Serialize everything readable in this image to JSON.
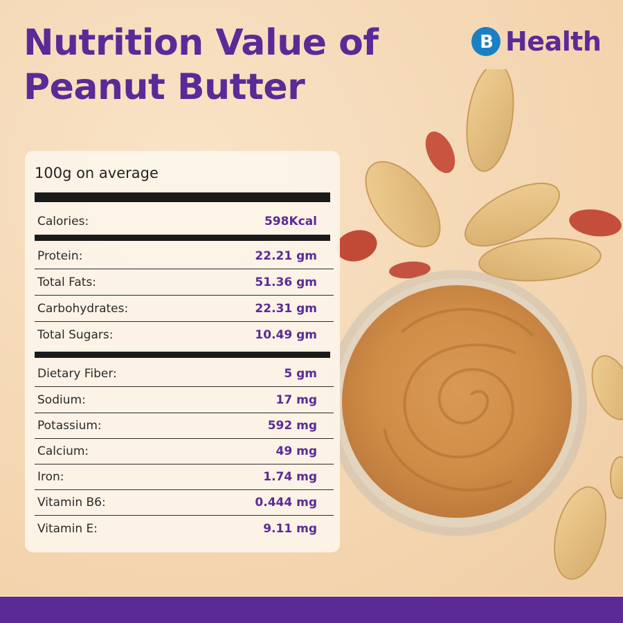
{
  "title": {
    "line1": "Nutrition Value of",
    "line2": "Peanut Butter"
  },
  "brand": {
    "name": "Health",
    "mark_letter": "B",
    "mark_color": "#1a7fc4"
  },
  "colors": {
    "accent": "#5b2a96",
    "background": "#f6dcbb",
    "footer": "#5b2a96"
  },
  "table": {
    "serving": "100g on average",
    "calories": {
      "label": "Calories:",
      "value": "598Kcal"
    },
    "macros": [
      {
        "label": "Protein:",
        "value": "22.21 gm"
      },
      {
        "label": "Total Fats:",
        "value": "51.36 gm"
      },
      {
        "label": "Carbohydrates:",
        "value": "22.31 gm"
      },
      {
        "label": "Total Sugars:",
        "value": "10.49 gm"
      }
    ],
    "micros": [
      {
        "label": "Dietary Fiber:",
        "value": "5 gm"
      },
      {
        "label": "Sodium:",
        "value": "17 mg"
      },
      {
        "label": "Potassium:",
        "value": "592 mg"
      },
      {
        "label": "Calcium:",
        "value": "49 mg"
      },
      {
        "label": "Iron:",
        "value": "1.74 mg"
      },
      {
        "label": "Vitamin B6:",
        "value": "0.444 mg"
      },
      {
        "label": "Vitamin E:",
        "value": "9.11 mg"
      }
    ]
  }
}
